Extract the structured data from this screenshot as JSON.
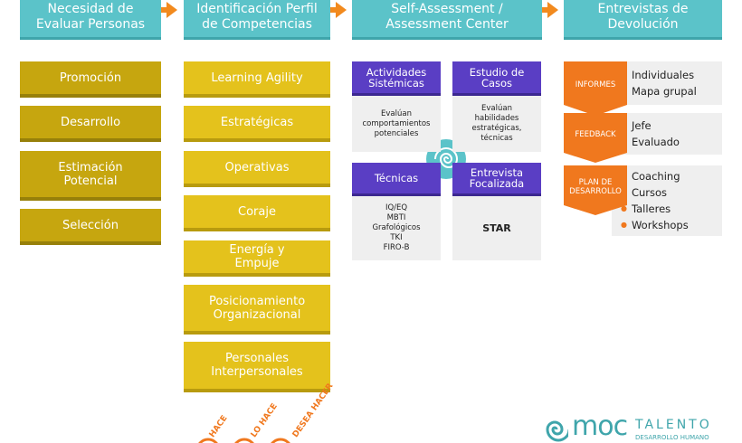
{
  "headers": [
    {
      "lines": [
        "Necesidad de",
        "Evaluar Personas"
      ]
    },
    {
      "lines": [
        "Identificación Perfil",
        "de Competencias"
      ]
    },
    {
      "lines": [
        "Self-Assessment /",
        "Assessment Center"
      ]
    },
    {
      "lines": [
        "Entrevistas de",
        "Devolución"
      ]
    }
  ],
  "needs": [
    "Promoción",
    "Desarrollo",
    "Estimación Potencial",
    "Selección"
  ],
  "competencies": [
    "Learning Agility",
    "Estratégicas",
    "Operativas",
    "Coraje",
    "Energía y Empuje",
    "Posicionamiento Organizacional",
    "Personales Interpersonales"
  ],
  "assessment": [
    {
      "title": "Actividades Sistémicas",
      "body": [
        "Evalúan comportamientos potenciales"
      ]
    },
    {
      "title": "Estudio de Casos",
      "body": [
        "Evalúan habilidades estratégicas, técnicas"
      ]
    },
    {
      "title": "Técnicas",
      "body": [
        "IQ/EQ",
        "MBTI",
        "Grafológicos",
        "TKI",
        "FIRO-B"
      ]
    },
    {
      "title": "Entrevista Focalizada",
      "body": [
        "STAR"
      ]
    }
  ],
  "feedback": [
    {
      "tag": "INFORMES",
      "items": [
        "Individuales",
        "Mapa grupal"
      ]
    },
    {
      "tag": "FEEDBACK",
      "items": [
        "Jefe",
        "Evaluado"
      ]
    },
    {
      "tag": "PLAN DE DESARROLLO",
      "items": [
        "Coaching",
        "Cursos",
        "Talleres",
        "Workshops"
      ]
    }
  ],
  "footer_labels": [
    "HACE",
    "LO HACE",
    "DESEA HACER"
  ],
  "logo": {
    "mark": "moc",
    "name": "TALENTO",
    "tagline": "DESARROLLO HUMANO"
  }
}
